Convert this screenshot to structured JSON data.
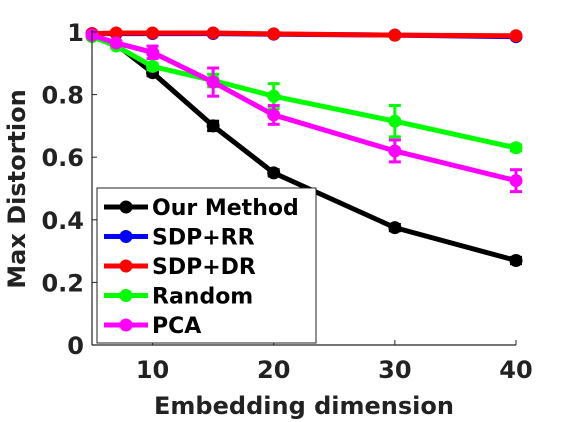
{
  "chart_data": {
    "type": "line",
    "title": "",
    "xlabel": "Embedding dimension",
    "ylabel": "Max Distortion",
    "xlim": [
      5,
      40
    ],
    "ylim": [
      0,
      1
    ],
    "x_ticks": [
      10,
      20,
      30,
      40
    ],
    "y_ticks": [
      0,
      0.2,
      0.4,
      0.6,
      0.8,
      1
    ],
    "y_tick_labels": [
      "0",
      "0.2",
      "0.4",
      "0.6",
      "0.8",
      "1"
    ],
    "grid": false,
    "legend_position": "bottom-left",
    "x": [
      5,
      7,
      10,
      15,
      20,
      30,
      40
    ],
    "series": [
      {
        "name": "Our Method",
        "color": "#000000",
        "values": [
          0.99,
          0.96,
          0.87,
          0.7,
          0.55,
          0.375,
          0.27
        ],
        "errors": [
          0,
          0,
          0.01,
          0.015,
          0.01,
          0.01,
          0.01
        ]
      },
      {
        "name": "SDP+RR",
        "color": "#0000ff",
        "values": [
          0.995,
          0.995,
          0.995,
          0.995,
          0.993,
          0.99,
          0.985
        ],
        "errors": [
          0,
          0,
          0,
          0,
          0,
          0,
          0
        ]
      },
      {
        "name": "SDP+DR",
        "color": "#ff0000",
        "values": [
          0.995,
          0.997,
          0.997,
          0.997,
          0.994,
          0.99,
          0.988
        ],
        "errors": [
          0,
          0,
          0,
          0,
          0,
          0,
          0
        ]
      },
      {
        "name": "Random",
        "color": "#00ff00",
        "values": [
          0.985,
          0.955,
          0.89,
          0.845,
          0.795,
          0.715,
          0.63
        ],
        "errors": [
          0,
          0,
          0.01,
          0.02,
          0.04,
          0.05,
          0.01
        ]
      },
      {
        "name": "PCA",
        "color": "#ff00ff",
        "values": [
          0.99,
          0.965,
          0.935,
          0.84,
          0.735,
          0.62,
          0.525
        ],
        "errors": [
          0,
          0,
          0.02,
          0.045,
          0.03,
          0.035,
          0.035
        ]
      }
    ]
  }
}
